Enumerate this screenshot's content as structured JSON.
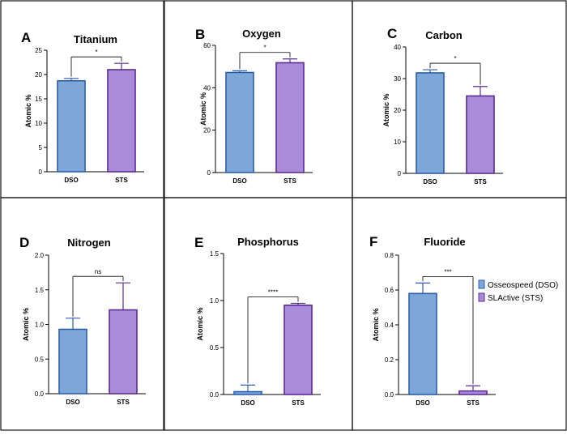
{
  "figure": {
    "legend": {
      "placement": "right of panel F",
      "items": [
        {
          "label": "Osseospeed (DSO)",
          "color": "#7da7d9"
        },
        {
          "label": "SLActive (STS)",
          "color": "#a98bd9"
        }
      ]
    }
  },
  "colors": {
    "dso_fill": "#7da7d9",
    "dso_stroke": "#2d5ea8",
    "sts_fill": "#a98bd9",
    "sts_stroke": "#5b2d91",
    "frame": "#222222"
  },
  "chart_data": [
    {
      "panel": "A",
      "title": "Titanium",
      "type": "bar",
      "ylabel": "Atomic %",
      "categories": [
        "DSO",
        "STS"
      ],
      "values": [
        18.7,
        21.0
      ],
      "errors": [
        0.5,
        1.3
      ],
      "ylim": [
        0,
        25
      ],
      "yticks": [
        0,
        5,
        10,
        15,
        20,
        25
      ],
      "tick_labels": [
        "0",
        "5",
        "10",
        "15",
        "20",
        "25"
      ],
      "significance": "*",
      "grid": false
    },
    {
      "panel": "B",
      "title": "Oxygen",
      "type": "bar",
      "ylabel": "Atomic %",
      "categories": [
        "DSO",
        "STS"
      ],
      "values": [
        47.2,
        51.8
      ],
      "errors": [
        0.8,
        1.8
      ],
      "ylim": [
        0,
        60
      ],
      "yticks": [
        0,
        20,
        40,
        60
      ],
      "tick_labels": [
        "0",
        "20",
        "40",
        "60"
      ],
      "significance": "*",
      "grid": false
    },
    {
      "panel": "C",
      "title": "Carbon",
      "type": "bar",
      "ylabel": "Atomic %",
      "categories": [
        "DSO",
        "STS"
      ],
      "values": [
        31.8,
        24.5
      ],
      "errors": [
        1.0,
        3.0
      ],
      "ylim": [
        0,
        40
      ],
      "yticks": [
        0,
        10,
        20,
        30,
        40
      ],
      "tick_labels": [
        "0",
        "10",
        "20",
        "30",
        "40"
      ],
      "significance": "*",
      "grid": false
    },
    {
      "panel": "D",
      "title": "Nitrogen",
      "type": "bar",
      "ylabel": "Atomic %",
      "categories": [
        "DSO",
        "STS"
      ],
      "values": [
        0.93,
        1.21
      ],
      "errors": [
        0.16,
        0.39
      ],
      "ylim": [
        0,
        2.0
      ],
      "yticks": [
        0,
        0.5,
        1.0,
        1.5,
        2.0
      ],
      "tick_labels": [
        "0.0",
        "0.5",
        "1.0",
        "1.5",
        "2.0"
      ],
      "significance": "ns",
      "grid": false
    },
    {
      "panel": "E",
      "title": "Phosphorus",
      "type": "bar",
      "ylabel": "Atomic %",
      "categories": [
        "DSO",
        "STS"
      ],
      "values": [
        0.03,
        0.95
      ],
      "errors": [
        0.07,
        0.02
      ],
      "ylim": [
        0,
        1.5
      ],
      "yticks": [
        0,
        0.5,
        1.0,
        1.5
      ],
      "tick_labels": [
        "0.0",
        "0.5",
        "1.0",
        "1.5"
      ],
      "significance": "****",
      "grid": false
    },
    {
      "panel": "F",
      "title": "Fluoride",
      "type": "bar",
      "ylabel": "Atomic %",
      "categories": [
        "DSO",
        "STS"
      ],
      "values": [
        0.58,
        0.02
      ],
      "errors": [
        0.06,
        0.03
      ],
      "ylim": [
        0,
        0.8
      ],
      "yticks": [
        0,
        0.2,
        0.4,
        0.6,
        0.8
      ],
      "tick_labels": [
        "0.0",
        "0.2",
        "0.4",
        "0.6",
        "0.8"
      ],
      "significance": "***",
      "grid": false
    }
  ]
}
